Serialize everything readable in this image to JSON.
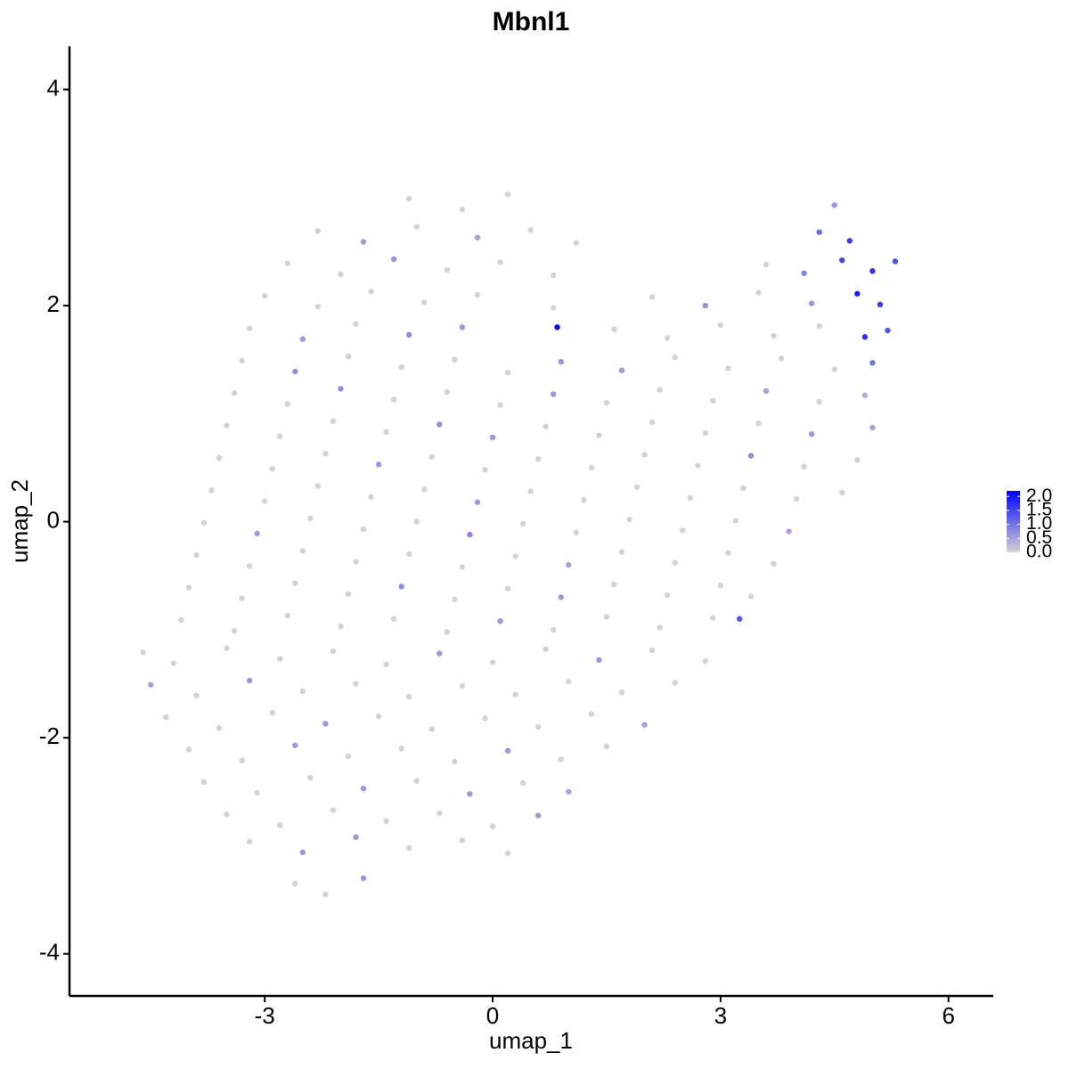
{
  "chart_data": {
    "type": "scatter",
    "title": "Mbnl1",
    "x_label": "umap_1",
    "y_label": "umap_2",
    "xlim": [
      -5.57,
      6.59
    ],
    "ylim": [
      -4.39,
      4.4
    ],
    "xticks": [
      -3,
      0,
      3,
      6
    ],
    "yticks": [
      -4,
      -2,
      0,
      2,
      4
    ],
    "color_low": "#d3d3d3",
    "color_high": "#0000ff",
    "color_lim": [
      0,
      2.2
    ],
    "color_ticks": [
      {
        "value": 0,
        "label": "0.0"
      },
      {
        "value": 0.5,
        "label": "0.5"
      },
      {
        "value": 1,
        "label": "1.0"
      },
      {
        "value": 1.5,
        "label": "1.5"
      },
      {
        "value": 2,
        "label": "2.0"
      }
    ],
    "x": [
      -1.1,
      -0.4,
      0.2,
      4.5,
      -2.3,
      -1.7,
      -1.0,
      -0.2,
      0.5,
      1.1,
      4.3,
      4.7,
      -2.7,
      -2.0,
      -1.3,
      -0.6,
      0.1,
      0.8,
      3.6,
      4.1,
      4.6,
      5.0,
      5.3,
      -3.0,
      -2.3,
      -1.6,
      -0.9,
      -0.2,
      0.8,
      2.1,
      2.8,
      3.5,
      4.2,
      4.8,
      5.1,
      -3.2,
      -2.5,
      -1.8,
      -1.1,
      -0.4,
      0.85,
      1.6,
      2.3,
      3.0,
      3.7,
      4.3,
      4.9,
      5.2,
      -3.3,
      -2.6,
      -1.9,
      -1.2,
      -0.5,
      0.2,
      0.9,
      1.7,
      2.4,
      3.1,
      3.8,
      4.5,
      5.0,
      -3.4,
      -2.7,
      -2.0,
      -1.3,
      -0.6,
      0.1,
      0.8,
      1.5,
      2.2,
      2.9,
      3.6,
      4.3,
      4.9,
      -3.5,
      -2.8,
      -2.1,
      -1.4,
      -0.7,
      0.0,
      0.7,
      1.4,
      2.1,
      2.8,
      3.5,
      4.2,
      5.0,
      -3.6,
      -2.9,
      -2.2,
      -1.5,
      -0.8,
      -0.1,
      0.6,
      1.3,
      2.0,
      2.7,
      3.4,
      4.1,
      4.8,
      -3.7,
      -3.0,
      -2.3,
      -1.6,
      -0.9,
      -0.2,
      0.5,
      1.2,
      1.9,
      2.6,
      3.3,
      4.0,
      4.6,
      -3.8,
      -3.1,
      -2.4,
      -1.7,
      -1.0,
      -0.3,
      0.4,
      1.1,
      1.8,
      2.5,
      3.2,
      3.9,
      -3.9,
      -3.2,
      -2.5,
      -1.8,
      -1.1,
      -0.4,
      0.3,
      1.0,
      1.7,
      2.4,
      3.1,
      3.7,
      -4.0,
      -3.3,
      -2.6,
      -1.9,
      -1.2,
      -0.5,
      0.2,
      0.9,
      1.6,
      2.3,
      3.0,
      3.4,
      -4.1,
      -3.4,
      -2.7,
      -2.0,
      -1.3,
      -0.6,
      0.1,
      0.8,
      1.5,
      2.2,
      2.9,
      3.25,
      -4.6,
      -4.2,
      -3.5,
      -2.8,
      -2.1,
      -1.4,
      -0.7,
      0.0,
      0.7,
      1.4,
      2.1,
      2.8,
      -4.5,
      -3.9,
      -3.2,
      -2.5,
      -1.8,
      -1.1,
      -0.4,
      0.3,
      1.0,
      1.7,
      2.4,
      -4.3,
      -3.6,
      -2.9,
      -2.2,
      -1.5,
      -0.8,
      -0.1,
      0.6,
      1.3,
      2.0,
      -4.0,
      -3.3,
      -2.6,
      -1.9,
      -1.2,
      -0.5,
      0.2,
      0.9,
      1.5,
      -3.8,
      -3.1,
      -2.4,
      -1.7,
      -1.0,
      -0.3,
      0.4,
      1.0,
      -3.5,
      -2.8,
      -2.1,
      -1.4,
      -0.7,
      0.0,
      0.6,
      -3.2,
      -2.5,
      -1.8,
      -1.1,
      -0.4,
      0.2,
      -2.6,
      -2.2,
      -1.7
    ],
    "values": [
      2.99,
      2.89,
      3.03,
      2.93,
      2.69,
      2.59,
      2.73,
      2.63,
      2.7,
      2.58,
      2.68,
      2.6,
      2.39,
      2.29,
      2.43,
      2.33,
      2.4,
      2.28,
      2.38,
      2.3,
      2.42,
      2.32,
      2.41,
      2.09,
      1.99,
      2.13,
      2.03,
      2.1,
      1.98,
      2.08,
      2.0,
      2.12,
      2.02,
      2.11,
      2.01,
      1.79,
      1.69,
      1.83,
      1.73,
      1.8,
      1.8,
      1.78,
      1.7,
      1.82,
      1.72,
      1.81,
      1.71,
      1.77,
      1.49,
      1.39,
      1.53,
      1.43,
      1.5,
      1.38,
      1.48,
      1.4,
      1.52,
      1.42,
      1.51,
      1.41,
      1.47,
      1.19,
      1.09,
      1.23,
      1.13,
      1.2,
      1.08,
      1.18,
      1.1,
      1.22,
      1.12,
      1.21,
      1.11,
      1.17,
      0.89,
      0.79,
      0.93,
      0.83,
      0.9,
      0.78,
      0.88,
      0.8,
      0.92,
      0.82,
      0.91,
      0.81,
      0.87,
      0.59,
      0.49,
      0.63,
      0.53,
      0.6,
      0.48,
      0.58,
      0.5,
      0.62,
      0.52,
      0.61,
      0.51,
      0.57,
      0.29,
      0.19,
      0.33,
      0.23,
      0.3,
      0.18,
      0.28,
      0.2,
      0.32,
      0.22,
      0.31,
      0.21,
      0.27,
      -0.01,
      -0.11,
      0.03,
      -0.07,
      0.0,
      -0.12,
      -0.02,
      -0.1,
      0.02,
      -0.08,
      0.01,
      -0.09,
      -0.31,
      -0.41,
      -0.27,
      -0.37,
      -0.3,
      -0.42,
      -0.32,
      -0.4,
      -0.28,
      -0.38,
      -0.29,
      -0.39,
      -0.61,
      -0.71,
      -0.57,
      -0.67,
      -0.6,
      -0.72,
      -0.62,
      -0.7,
      -0.58,
      -0.68,
      -0.59,
      -0.69,
      -0.91,
      -1.01,
      -0.87,
      -0.97,
      -0.9,
      -1.02,
      -0.92,
      -1.0,
      -0.88,
      -0.98,
      -0.89,
      -0.9,
      -1.21,
      -1.31,
      -1.17,
      -1.27,
      -1.2,
      -1.32,
      -1.22,
      -1.3,
      -1.18,
      -1.28,
      -1.19,
      -1.29,
      -1.51,
      -1.61,
      -1.47,
      -1.57,
      -1.5,
      -1.62,
      -1.52,
      -1.6,
      -1.48,
      -1.58,
      -1.49,
      -1.81,
      -1.91,
      -1.77,
      -1.87,
      -1.8,
      -1.92,
      -1.82,
      -1.9,
      -1.78,
      -1.88,
      -2.11,
      -2.21,
      -2.07,
      -2.17,
      -2.1,
      -2.22,
      -2.12,
      -2.2,
      -2.08,
      -2.41,
      -2.51,
      -2.37,
      -2.47,
      -2.4,
      -2.52,
      -2.42,
      -2.5,
      -2.71,
      -2.81,
      -2.67,
      -2.77,
      -2.7,
      -2.82,
      -2.72,
      -2.96,
      -3.06,
      -2.92,
      -3.02,
      -2.95,
      -3.07,
      -3.35,
      -3.45,
      -3.3
    ],
    "expression": [
      0,
      0,
      0,
      0.6,
      0,
      0.6,
      0,
      0.5,
      0,
      0,
      1.1,
      1.6,
      0,
      0,
      0.6,
      0,
      0,
      0,
      0,
      0.8,
      1.5,
      1.7,
      1.4,
      0,
      0,
      0,
      0,
      0,
      0,
      0,
      0.7,
      0,
      0.6,
      1.9,
      1.6,
      0,
      0.6,
      0,
      0.7,
      0.6,
      2.1,
      0,
      0,
      0,
      0,
      0,
      1.7,
      1.3,
      0,
      0.7,
      0,
      0,
      0,
      0,
      0.6,
      0.6,
      0,
      0,
      0,
      0,
      1.0,
      0,
      0,
      0.7,
      0,
      0,
      0,
      0.6,
      0,
      0,
      0,
      0.5,
      0,
      0.4,
      0,
      0,
      0,
      0,
      0.7,
      0.6,
      0,
      0,
      0,
      0,
      0,
      0.6,
      0.5,
      0,
      0,
      0,
      0.6,
      0,
      0,
      0,
      0,
      0,
      0,
      0.7,
      0,
      0,
      0,
      0,
      0,
      0,
      0,
      0.6,
      0,
      0,
      0,
      0,
      0,
      0,
      0,
      0,
      0.6,
      0,
      0,
      0,
      0.8,
      0,
      0,
      0,
      0,
      0,
      0.5,
      0,
      0,
      0,
      0,
      0,
      0,
      0,
      0.5,
      0,
      0,
      0,
      0,
      0,
      0,
      0,
      0,
      0.7,
      0,
      0,
      0.6,
      0,
      0,
      0,
      0,
      0,
      0,
      0,
      0,
      0,
      0,
      0.6,
      0,
      0,
      0,
      0,
      1.3,
      0,
      0,
      0,
      0,
      0,
      0,
      0.6,
      0,
      0,
      0.6,
      0,
      0,
      0.5,
      0,
      0.6,
      0,
      0,
      0,
      0,
      0,
      0,
      0,
      0,
      0,
      0,
      0,
      0.6,
      0,
      0,
      0,
      0,
      0,
      0.5,
      0,
      0,
      0.6,
      0,
      0,
      0,
      0.6,
      0,
      0,
      0,
      0,
      0,
      0.6,
      0,
      0.6,
      0,
      0.5,
      0,
      0,
      0,
      0,
      0,
      0,
      0.6,
      0,
      0.6,
      0.6,
      0,
      0,
      0,
      0,
      0,
      0.6
    ]
  }
}
